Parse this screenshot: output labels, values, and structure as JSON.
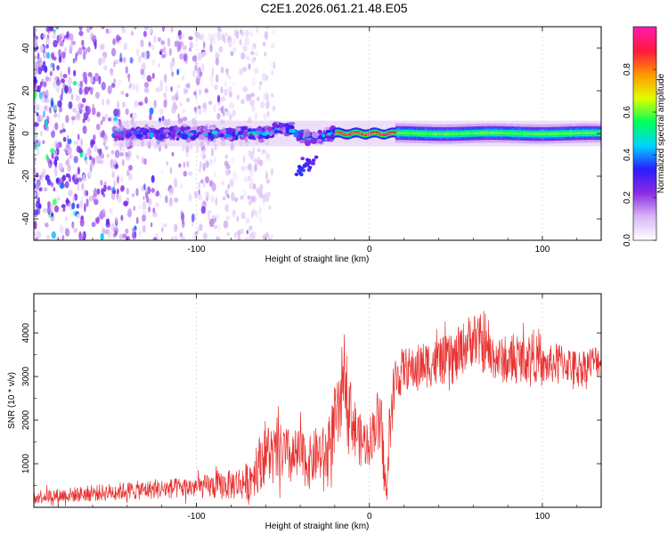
{
  "title": "C2E1.2026.061.21.48.E05",
  "chart_data": [
    {
      "type": "heatmap",
      "name": "spectrogram",
      "xlabel": "Height of straight line (km)",
      "ylabel": "Frequency (Hz)",
      "xlim": [
        -194,
        134
      ],
      "ylim": [
        -50,
        50
      ],
      "xticks": [
        -100,
        0,
        100
      ],
      "xtick_labels": [
        "-100",
        "0",
        "100"
      ],
      "yticks": [
        -40,
        -20,
        0,
        20,
        40
      ],
      "ytick_labels": [
        "-40",
        "-20",
        "0",
        "20",
        "40"
      ],
      "colorbar": {
        "label": "Normalized spectral amplitude",
        "range": [
          0,
          1
        ],
        "ticks": [
          0.0,
          0.2,
          0.4,
          0.6,
          0.8
        ],
        "tick_labels": [
          "0.0",
          "0.2",
          "0.4",
          "0.6",
          "0.8"
        ],
        "colors": [
          "#ffffff",
          "#d7b6f5",
          "#8a2be2",
          "#2a1cff",
          "#00d4ff",
          "#00ff5a",
          "#e0ff00",
          "#ff9a00",
          "#ff1a3c",
          "#ff1aa6"
        ]
      },
      "features": [
        {
          "description": "scattered noise region",
          "x_range": [
            -194,
            -70
          ],
          "y_range": [
            -50,
            50
          ],
          "amplitude": 0.15
        },
        {
          "description": "noisy central band",
          "x_range": [
            -148,
            -20
          ],
          "y_range": [
            -5,
            5
          ],
          "amplitude": 0.35
        },
        {
          "description": "secondary blob",
          "x": -35,
          "y": -15,
          "amplitude": 0.3
        },
        {
          "description": "high amplitude segment",
          "x_range": [
            -20,
            15
          ],
          "y_range": [
            -1,
            1
          ],
          "amplitude": 0.9
        },
        {
          "description": "stable band",
          "x_range": [
            15,
            134
          ],
          "y_range": [
            -4,
            4
          ],
          "amplitude": 0.55
        }
      ]
    },
    {
      "type": "line",
      "name": "snr",
      "xlabel": "Height of straight line (km)",
      "ylabel": "SNR (10 * v/v)",
      "xlim": [
        -194,
        134
      ],
      "ylim": [
        0,
        4900
      ],
      "xticks": [
        -100,
        0,
        100
      ],
      "xtick_labels": [
        "-100",
        "0",
        "100"
      ],
      "yticks": [
        1000,
        2000,
        3000,
        4000
      ],
      "ytick_labels": [
        "1000",
        "2000",
        "3000",
        "4000"
      ],
      "color": "#e8312f",
      "series": [
        {
          "name": "SNR",
          "x": [
            -194,
            -180,
            -160,
            -140,
            -120,
            -100,
            -90,
            -80,
            -70,
            -65,
            -60,
            -55,
            -50,
            -45,
            -40,
            -35,
            -30,
            -25,
            -20,
            -17,
            -15,
            -12,
            -10,
            -5,
            0,
            5,
            8,
            10,
            12,
            15,
            20,
            25,
            30,
            40,
            50,
            55,
            60,
            70,
            80,
            90,
            95,
            100,
            110,
            120,
            134
          ],
          "y": [
            250,
            270,
            320,
            380,
            420,
            460,
            480,
            520,
            600,
            900,
            1300,
            1150,
            1250,
            1100,
            1200,
            1000,
            1250,
            1150,
            1900,
            2200,
            3300,
            2500,
            2000,
            1500,
            1500,
            2100,
            1200,
            200,
            2000,
            2900,
            3200,
            3150,
            3250,
            3350,
            3400,
            3700,
            3900,
            3500,
            3300,
            3450,
            3500,
            3200,
            3350,
            3200,
            3400
          ],
          "noise_amplitude": [
            160,
            170,
            190,
            210,
            230,
            250,
            300,
            350,
            450,
            600,
            750,
            700,
            700,
            650,
            650,
            600,
            650,
            700,
            800,
            900,
            900,
            800,
            700,
            600,
            550,
            650,
            800,
            200,
            700,
            600,
            500,
            500,
            550,
            550,
            600,
            600,
            650,
            550,
            500,
            550,
            600,
            450,
            450,
            400,
            400
          ]
        }
      ]
    }
  ]
}
